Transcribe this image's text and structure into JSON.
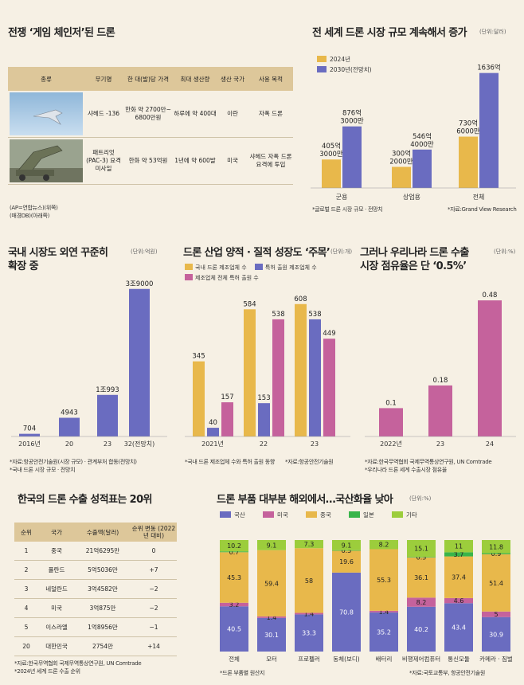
{
  "panels": {
    "drone_table": {
      "title": "전쟁 ‘게임 체인저’된 드론",
      "headers": [
        "종류",
        "무기명",
        "한 대(발)당 가격",
        "최대 생산량",
        "생산 국가",
        "사용 목적"
      ],
      "rows": [
        [
          "",
          "샤헤드 -136",
          "한화 약 2700만~ 6800만원",
          "하루에 약 400대",
          "이란",
          "자폭 드론"
        ],
        [
          "",
          "패트리엇 (PAC-3) 요격 미사일",
          "한화 약 53억원",
          "1년에 약 600발",
          "미국",
          "샤헤드 자폭 드론 요격에 투입"
        ]
      ],
      "photo1": "shahed-drone-photo",
      "photo2": "patriot-launcher-photo",
      "caption1": "(AP=연합뉴스)(위쪽)",
      "caption2": "(매경DB)(아래쪽)"
    },
    "market": {
      "title": "전 세계 드론 시장 규모 계속해서 증가",
      "unit": "(단위:달러)",
      "source_left": "*글로벌 드론 시장 규모 · 전망치",
      "source_right": "*자료:Grand View Research"
    },
    "domestic": {
      "title_line1": "국내 시장도 외연 꾸준히",
      "title_line2": "확장 중",
      "unit": "(단위:억원)",
      "source1": "*자료:항공안전기술원(시장 규모) · 관계부처 합동(전망치)",
      "source2": "*국내 드론 시장 규모 · 전망치"
    },
    "industry": {
      "title": "드론 산업 양적 · 질적 성장도 ‘주목’",
      "unit": "(단위:개)",
      "source1": "*국내 드론 제조업체 수와 특허 출원 동향",
      "source2": "*자료:항공안전기술원"
    },
    "export_share": {
      "title_line1": "그러나 우리나라 드론 수출",
      "title_line2": "시장 점유율은 단 ‘0.5%’",
      "unit": "(단위:%)",
      "source1": "*자료:한국무역협회 국제무역통상연구원, UN Comtrade",
      "source2": "*우리나라 드론 세계 수출시장 점유율"
    },
    "ranking": {
      "title": "한국의 드론 수출 성적표는 20위",
      "headers": [
        "순위",
        "국가",
        "수출액(달러)",
        "순위 변동 (2022년 대비)"
      ],
      "rows": [
        [
          "1",
          "중국",
          "21억6295만",
          "0"
        ],
        [
          "2",
          "폴란드",
          "5억5036만",
          "+7"
        ],
        [
          "3",
          "네덜란드",
          "3억4582만",
          "−2"
        ],
        [
          "4",
          "미국",
          "3억875만",
          "−2"
        ],
        [
          "5",
          "이스라엘",
          "1억8956만",
          "−1"
        ],
        [
          "20",
          "대한민국",
          "2754만",
          "+14"
        ]
      ],
      "source1": "*자료:한국무역협회 국제무역통상연구원, UN Comtrade",
      "source2": "*2024년 세계 드론 수출 순위"
    },
    "parts": {
      "title": "드론 부품 대부분 해외에서…국산화율 낮아",
      "unit": "(단위:%)",
      "source1": "*드론 부품별 원산지",
      "source2": "*자료:국토교통부, 항공안전기술원"
    }
  },
  "colors": {
    "gold": "#e8b84b",
    "blue": "#6a6cc0",
    "pink": "#c5629c",
    "green": "#39b54a",
    "lime": "#9ccd3c",
    "bg": "#f6f0e4"
  },
  "chart_data": [
    {
      "id": "market",
      "type": "bar",
      "categories": [
        "군용",
        "상업용",
        "전체"
      ],
      "series": [
        {
          "name": "2024년",
          "values": [
            405.3,
            300.2,
            730.6
          ],
          "labels": [
            "405억 3000만",
            "300억 2000만",
            "730억 6000만"
          ]
        },
        {
          "name": "2030년(전망치)",
          "values": [
            876.3,
            546.4,
            1636
          ],
          "labels": [
            "876억 3000만",
            "546억 4000만",
            "1636억"
          ]
        }
      ],
      "ylim": [
        0,
        1700
      ]
    },
    {
      "id": "domestic",
      "type": "bar",
      "categories": [
        "2016년",
        "20",
        "23",
        "32(전망치)"
      ],
      "values": [
        704,
        4943,
        10993,
        39000
      ],
      "labels": [
        "704",
        "4943",
        "1조993",
        "3조9000"
      ],
      "ylim": [
        0,
        40000
      ]
    },
    {
      "id": "industry",
      "type": "bar",
      "categories": [
        "2021년",
        "22",
        "23"
      ],
      "series": [
        {
          "name": "국내 드론 제조업체 수",
          "values": [
            345,
            584,
            608
          ]
        },
        {
          "name": "특허 출원 제조업체 수",
          "values": [
            40,
            153,
            538
          ]
        },
        {
          "name": "제조업체 전체 특허 출원 수",
          "values": [
            157,
            538,
            449
          ]
        }
      ],
      "ylim": [
        0,
        640
      ]
    },
    {
      "id": "export_share",
      "type": "bar",
      "categories": [
        "2022년",
        "23",
        "24"
      ],
      "values": [
        0.1,
        0.18,
        0.48
      ],
      "ylim": [
        0,
        0.5
      ]
    },
    {
      "id": "parts",
      "type": "stacked_bar",
      "categories": [
        "전체",
        "모터",
        "프로펠러",
        "동체(보디)",
        "배터리",
        "비행제어컴퓨터",
        "통신모듈",
        "카메라 · 짐벌"
      ],
      "series": [
        {
          "name": "국산",
          "values": [
            40.5,
            30.1,
            33.3,
            70.8,
            35.2,
            40.2,
            43.4,
            30.9
          ]
        },
        {
          "name": "미국",
          "values": [
            3.2,
            1.4,
            1.4,
            0,
            1.4,
            8.2,
            4.6,
            5
          ]
        },
        {
          "name": "중국",
          "values": [
            45.3,
            59.4,
            58,
            19.6,
            55.3,
            36.1,
            37.4,
            51.4
          ]
        },
        {
          "name": "일본",
          "values": [
            0.7,
            0,
            0,
            0.5,
            0,
            0.5,
            3.7,
            0.9
          ]
        },
        {
          "name": "기타",
          "values": [
            10.2,
            9.1,
            7.3,
            9.1,
            8.2,
            15.1,
            11,
            11.8
          ]
        }
      ],
      "labels": [
        [
          "40.5",
          "3.2",
          "45.3",
          "0.7",
          "10.2"
        ],
        [
          "30.1",
          "1.4",
          "59.4",
          "",
          "9.1"
        ],
        [
          "33.3",
          "1.4",
          "58",
          "",
          "7.3"
        ],
        [
          "70.8",
          "",
          "19.6",
          "0.5",
          "9.1"
        ],
        [
          "35.2",
          "1.4",
          "55.3",
          "",
          "8.2"
        ],
        [
          "40.2",
          "8.2",
          "36.1",
          "0.5",
          "15.1"
        ],
        [
          "43.4",
          "4.6",
          "37.4",
          "3.7",
          "11"
        ],
        [
          "30.9",
          "5",
          "51.4",
          "0.9",
          "11.8"
        ]
      ],
      "ylim": [
        0,
        100
      ]
    }
  ]
}
